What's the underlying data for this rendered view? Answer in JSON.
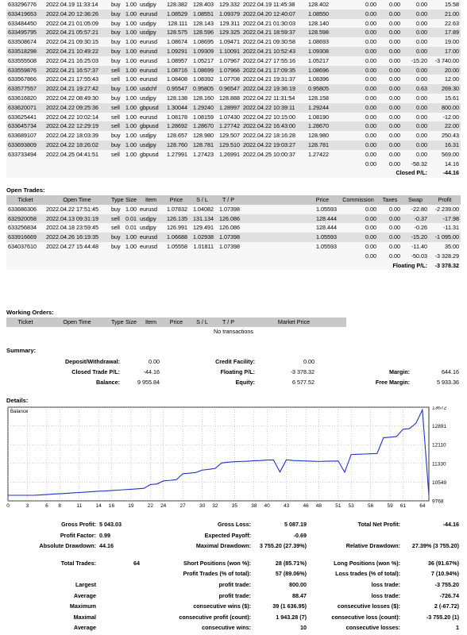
{
  "closed_trades": [
    [
      "633296776",
      "2022.04.19 11:33:14",
      "buy",
      "1.00",
      "usdjpy",
      "128.382",
      "128.403",
      "129.332",
      "2022.04.19 11:45:38",
      "128.402",
      "0.00",
      "0.00",
      "0.00",
      "15.58"
    ],
    [
      "633419653",
      "2022.04.20 12:36:26",
      "buy",
      "1.00",
      "eurusd",
      "1.08529",
      "1.08551",
      "1.09379",
      "2022.04.20 12:40:07",
      "1.08550",
      "0.00",
      "0.00",
      "0.00",
      "21.00"
    ],
    [
      "633484450",
      "2022.04.21 01:05:09",
      "buy",
      "1.00",
      "usdjpy",
      "128.111",
      "128.143",
      "129.311",
      "2022.04.21 01:30:03",
      "128.140",
      "0.00",
      "0.00",
      "0.00",
      "22.63"
    ],
    [
      "633495795",
      "2022.04.21 05:57:21",
      "buy",
      "1.00",
      "usdjpy",
      "128.575",
      "128.596",
      "129.325",
      "2022.04.21 18:59:37",
      "128.598",
      "0.00",
      "0.00",
      "0.00",
      "17.89"
    ],
    [
      "633508674",
      "2022.04.21 09:30:15",
      "buy",
      "1.00",
      "eurusd",
      "1.08674",
      "1.08695",
      "1.09471",
      "2022.04.21 09:30:58",
      "1.08693",
      "0.00",
      "0.00",
      "0.00",
      "19.00"
    ],
    [
      "633518298",
      "2022.04.21 10:49:22",
      "buy",
      "1.00",
      "eurusd",
      "1.09291",
      "1.09309",
      "1.10091",
      "2022.04.21 10:52:43",
      "1.09308",
      "0.00",
      "0.00",
      "0.00",
      "17.00"
    ],
    [
      "633555508",
      "2022.04.21 16:25:03",
      "buy",
      "1.00",
      "eurusd",
      "1.08957",
      "1.05217",
      "1.07967",
      "2022.04.27 17:55:16",
      "1.05217",
      "0.00",
      "0.00",
      "-15.20",
      "-3 740.00"
    ],
    [
      "633559876",
      "2022.04.21 16:57:37",
      "sell",
      "1.00",
      "eurusd",
      "1.08716",
      "1.08699",
      "1.07966",
      "2022.04.21 17:09:35",
      "1.08696",
      "0.00",
      "0.00",
      "0.00",
      "20.00"
    ],
    [
      "633567866",
      "2022.04.21 17:55:43",
      "sell",
      "1.00",
      "eurusd",
      "1.08408",
      "1.08392",
      "1.07708",
      "2022.04.21 19:31:37",
      "1.08396",
      "0.00",
      "0.00",
      "0.00",
      "12.00"
    ],
    [
      "633577557",
      "2022.04.21 19:27:42",
      "buy",
      "1.00",
      "usdchf",
      "0.95547",
      "0.95805",
      "0.96547",
      "2022.04.22 19:36:19",
      "0.95805",
      "0.00",
      "0.00",
      "0.63",
      "269.30"
    ],
    [
      "633616820",
      "2022.04.22 08:49:30",
      "buy",
      "1.00",
      "usdjpy",
      "128.138",
      "128.160",
      "128.888",
      "2022.04.22 11:31:54",
      "128.158",
      "0.00",
      "0.00",
      "0.00",
      "15.61"
    ],
    [
      "633620071",
      "2022.04.22 09:25:36",
      "sell",
      "1.00",
      "gbpusd",
      "1.30044",
      "1.29240",
      "1.28997",
      "2022.04.22 10:39:11",
      "1.29244",
      "0.00",
      "0.00",
      "0.00",
      "800.00"
    ],
    [
      "633625441",
      "2022.04.22 10:02:14",
      "sell",
      "1.00",
      "eurusd",
      "1.08178",
      "1.08159",
      "1.07430",
      "2022.04.22 10:15:00",
      "1.08190",
      "0.00",
      "0.00",
      "0.00",
      "-12.00"
    ],
    [
      "633645734",
      "2022.04.22 12:29:19",
      "sell",
      "1.00",
      "gbpusd",
      "1.28692",
      "1.28670",
      "1.27742",
      "2022.04.22 16:43:00",
      "1.28670",
      "0.00",
      "0.00",
      "0.00",
      "22.00"
    ],
    [
      "633689107",
      "2022.04.22 18:03:39",
      "buy",
      "1.00",
      "usdjpy",
      "128.657",
      "128.980",
      "129.507",
      "2022.04.22 18:16:28",
      "128.980",
      "0.00",
      "0.00",
      "0.00",
      "250.43"
    ],
    [
      "633693809",
      "2022.04.22 18:26:02",
      "buy",
      "1.00",
      "usdjpy",
      "128.760",
      "128.781",
      "129.510",
      "2022.04.22 19:03:27",
      "128.781",
      "0.00",
      "0.00",
      "0.00",
      "16.31"
    ],
    [
      "633733494",
      "2022.04.25 04:41:51",
      "sell",
      "1.00",
      "gbpusd",
      "1.27991",
      "1.27423",
      "1.26991",
      "2022.04.25 10:00:37",
      "1.27422",
      "0.00",
      "0.00",
      "0.00",
      "569.00"
    ]
  ],
  "closed_totals": {
    "commission": "0.00",
    "taxes": "0.00",
    "swap": "-58.32",
    "profit": "14.16",
    "label": "Closed P/L:",
    "value": "-44.16"
  },
  "open_trades": {
    "title": "Open Trades:",
    "headers": [
      "Ticket",
      "Open Time",
      "Type",
      "Size",
      "Item",
      "Price",
      "S / L",
      "T / P",
      "Price",
      "Commission",
      "Taxes",
      "Swap",
      "Profit"
    ],
    "rows": [
      [
        "633686306",
        "2022.04.22 17:51:45",
        "buy",
        "1.00",
        "eurusd",
        "1.07832",
        "1.04082",
        "1.07398",
        "1.05593",
        "0.00",
        "0.00",
        "-22.80",
        "-2 239.00"
      ],
      [
        "632920058",
        "2022.04.13 09:31:19",
        "sell",
        "0.01",
        "usdjpy",
        "126.135",
        "131.134",
        "126.086",
        "128.444",
        "0.00",
        "0.00",
        "-0.37",
        "-17.98"
      ],
      [
        "633256834",
        "2022.04.18 23:59:45",
        "sell",
        "0.01",
        "usdjpy",
        "126.991",
        "129.491",
        "126.086",
        "128.444",
        "0.00",
        "0.00",
        "-0.26",
        "-11.31"
      ],
      [
        "633916669",
        "2022.04.26 16:19:35",
        "buy",
        "1.00",
        "eurusd",
        "1.06688",
        "1.02938",
        "1.07398",
        "1.05593",
        "0.00",
        "0.00",
        "-15.20",
        "-1 095.00"
      ],
      [
        "634037610",
        "2022.04.27 15:44:48",
        "buy",
        "1.00",
        "eurusd",
        "1.05558",
        "1.01811",
        "1.07398",
        "1.05593",
        "0.00",
        "0.00",
        "-11.40",
        "35.00"
      ]
    ],
    "totals": {
      "commission": "0.00",
      "taxes": "0.00",
      "swap": "-50.03",
      "profit": "-3 328.29"
    },
    "floating_label": "Floating P/L:",
    "floating_value": "-3 378.32"
  },
  "working_orders": {
    "title": "Working Orders:",
    "headers": [
      "Ticket",
      "Open Time",
      "Type",
      "Size",
      "Item",
      "Price",
      "S / L",
      "T / P",
      "Market Price"
    ],
    "empty": "No transactions"
  },
  "summary": {
    "title": "Summary:",
    "deposit_label": "Deposit/Withdrawal:",
    "deposit": "0.00",
    "credit_label": "Credit Facility:",
    "credit": "0.00",
    "closed_label": "Closed Trade P/L:",
    "closed": "-44.16",
    "floating_label": "Floating P/L:",
    "floating": "-3 378.32",
    "margin_label": "Margin:",
    "margin": "644.16",
    "balance_label": "Balance:",
    "balance": "9 955.84",
    "equity_label": "Equity:",
    "equity": "6 577.52",
    "free_margin_label": "Free Margin:",
    "free_margin": "5 933.36"
  },
  "details_title": "Details:",
  "chart_data": {
    "type": "line",
    "title": "Balance",
    "x_ticks": [
      "0",
      "3",
      "6",
      "8",
      "11",
      "14",
      "16",
      "19",
      "22",
      "24",
      "27",
      "30",
      "32",
      "35",
      "38",
      "40",
      "43",
      "46",
      "48",
      "51",
      "53",
      "56",
      "59",
      "61",
      "64"
    ],
    "y_ticks": [
      "13672",
      "12891",
      "12110",
      "11330",
      "10549",
      "9768"
    ],
    "ylim": [
      9768,
      13672
    ],
    "xlim": [
      0,
      65
    ],
    "x": [
      0,
      1,
      2,
      3,
      4,
      5,
      6,
      7,
      8,
      9,
      10,
      11,
      12,
      13,
      14,
      15,
      16,
      17,
      18,
      19,
      20,
      21,
      22,
      23,
      24,
      25,
      26,
      27,
      28,
      29,
      30,
      31,
      32,
      33,
      34,
      35,
      36,
      37,
      38,
      39,
      40,
      41,
      42,
      43,
      44,
      45,
      46,
      47,
      48,
      49,
      50,
      51,
      52,
      53,
      54,
      55,
      56,
      57,
      58,
      59,
      60,
      61,
      62,
      63,
      64,
      65
    ],
    "values": [
      10000,
      10000,
      10000,
      10000,
      10000,
      10015,
      10030,
      10050,
      10065,
      10080,
      10100,
      10115,
      10135,
      10150,
      10170,
      10180,
      10200,
      10215,
      10235,
      10250,
      10270,
      10290,
      10450,
      10470,
      10600,
      10620,
      10650,
      10900,
      10920,
      10950,
      11050,
      11080,
      11120,
      11350,
      11380,
      11400,
      11410,
      11420,
      11440,
      11450,
      11470,
      11475,
      10970,
      11480,
      11450,
      11440,
      11430,
      11420,
      11410,
      11420,
      11425,
      11430,
      10960,
      11700,
      11710,
      11720,
      11730,
      11740,
      12400,
      12420,
      12450,
      12750,
      12780,
      13000,
      13560,
      10000
    ]
  },
  "stats": {
    "gross_profit_label": "Gross Profit:",
    "gross_profit": "5 043.03",
    "gross_loss_label": "Gross Loss:",
    "gross_loss": "5 087.19",
    "total_net_label": "Total Net Profit:",
    "total_net": "-44.16",
    "profit_factor_label": "Profit Factor:",
    "profit_factor": "0.99",
    "expected_payoff_label": "Expected Payoff:",
    "expected_payoff": "-0.69",
    "abs_dd_label": "Absolute Drawdown:",
    "abs_dd": "44.16",
    "max_dd_label": "Maximal Drawdown:",
    "max_dd": "3 755.20 (27.39%)",
    "rel_dd_label": "Relative Drawdown:",
    "rel_dd": "27.39% (3 755.20)",
    "total_trades_label": "Total Trades:",
    "total_trades": "64",
    "short_label": "Short Positions (won %):",
    "short": "28 (85.71%)",
    "long_label": "Long Positions (won %):",
    "long": "36 (91.67%)",
    "profit_trades_label": "Profit Trades (% of total):",
    "profit_trades": "57 (89.06%)",
    "loss_trades_label": "Loss trades (% of total):",
    "loss_trades": "7 (10.94%)",
    "largest_label": "Largest",
    "largest_profit_label": "profit trade:",
    "largest_profit": "800.00",
    "largest_loss_label": "loss trade:",
    "largest_loss": "-3 755.20",
    "average_label": "Average",
    "avg_profit_label": "profit trade:",
    "avg_profit": "88.47",
    "avg_loss_label": "loss trade:",
    "avg_loss": "-726.74",
    "maximum_label": "Maximum",
    "max_cons_wins_label": "consecutive wins ($):",
    "max_cons_wins": "39 (1 636.95)",
    "max_cons_losses_label": "consecutive losses ($):",
    "max_cons_losses": "2 (-67.72)",
    "maximal_label": "Maximal",
    "maximal_profit_label": "consecutive profit (count):",
    "maximal_profit": "1 943.28 (7)",
    "maximal_loss_label": "consecutive loss (count):",
    "maximal_loss": "-3 755.20 (1)",
    "average2_label": "Average",
    "avg_cons_wins_label": "consecutive wins:",
    "avg_cons_wins": "10",
    "avg_cons_losses_label": "consecutive losses:",
    "avg_cons_losses": "1"
  }
}
